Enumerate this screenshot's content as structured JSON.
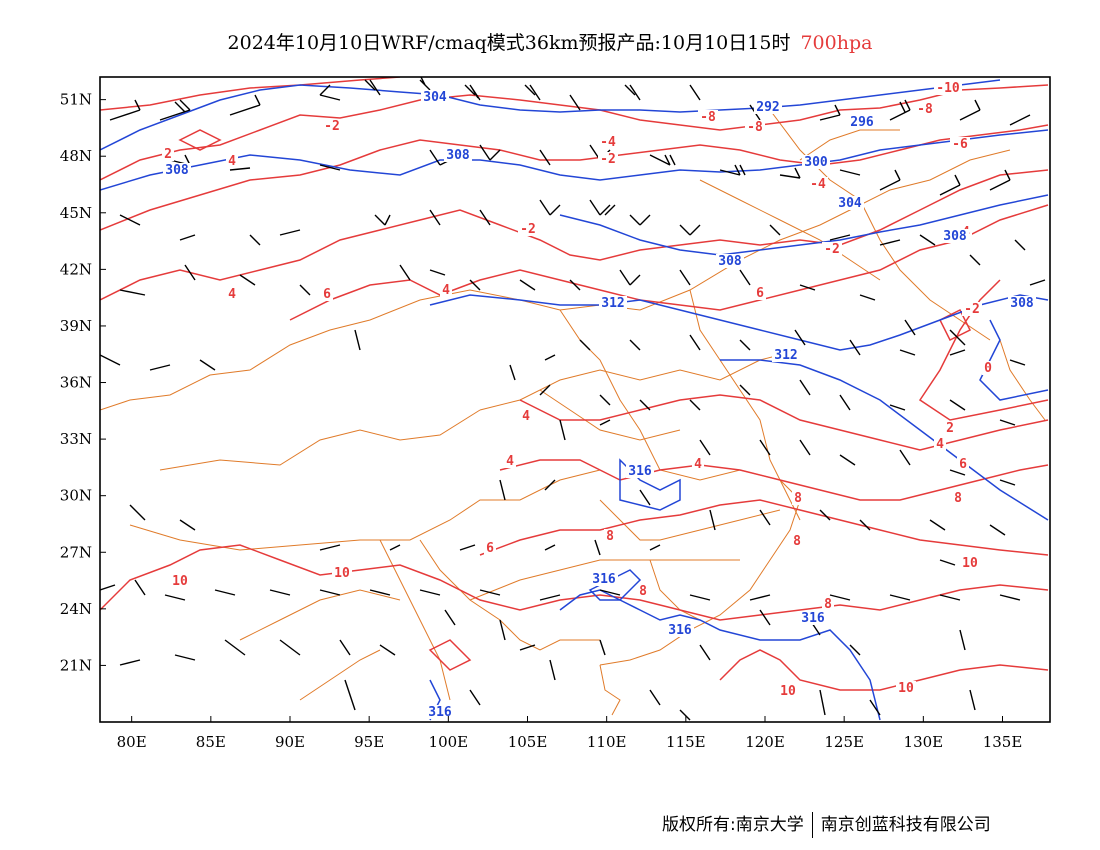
{
  "title": {
    "text": "2024年10月10日WRF/cmaq模式36km预报产品:10月10日15时",
    "level": "700hpa"
  },
  "map": {
    "lon_range": [
      78,
      138
    ],
    "lat_range": [
      18,
      52.2
    ],
    "lon_ticks": [
      "80E",
      "85E",
      "90E",
      "95E",
      "100E",
      "105E",
      "110E",
      "115E",
      "120E",
      "125E",
      "130E",
      "135E"
    ],
    "lat_ticks": [
      "51N",
      "48N",
      "45N",
      "42N",
      "39N",
      "36N",
      "33N",
      "30N",
      "27N",
      "24N",
      "21N"
    ],
    "colors": {
      "temperature": "#e53b3b",
      "geopotential_height": "#2346d6",
      "boundary": "#e07b2a",
      "wind_barb": "#000000",
      "frame": "#000000"
    },
    "temperature_labels": [
      "-10",
      "-8",
      "-6",
      "-4",
      "-2",
      "0",
      "2",
      "4",
      "6",
      "8",
      "10"
    ],
    "height_labels": [
      "292",
      "296",
      "300",
      "304",
      "308",
      "312",
      "316"
    ]
  },
  "footer": {
    "copyright": "版权所有:南京大学",
    "company": "南京创蓝科技有限公司"
  }
}
